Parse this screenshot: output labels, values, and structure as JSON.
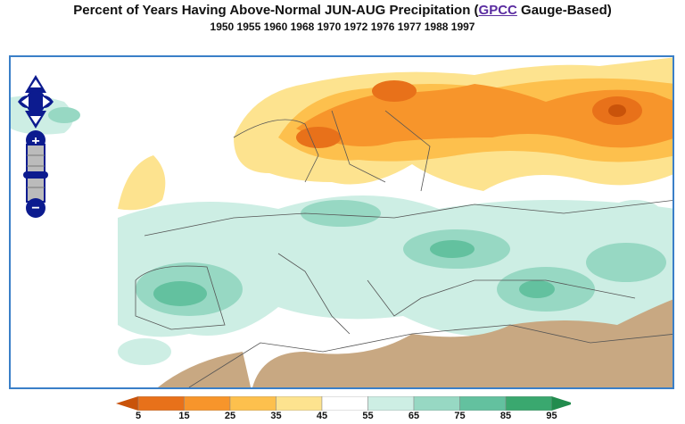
{
  "header": {
    "title_prefix": "Percent of Years Having Above-Normal JUN-AUG Precipitation (",
    "title_link": "GPCC",
    "title_suffix": " Gauge-Based)",
    "years": "1950 1955 1960 1968 1970 1972 1976 1977 1988 1997"
  },
  "map_controls": {
    "pan": "pan-arrows-icon",
    "zoom_in": "+",
    "zoom_out": "−"
  },
  "legend": {
    "ticks": [
      "5",
      "15",
      "25",
      "35",
      "45",
      "55",
      "65",
      "75",
      "85",
      "95"
    ],
    "colors": [
      "#c9530a",
      "#e8711a",
      "#f7952b",
      "#fdc04d",
      "#fde38f",
      "#ffffff",
      "#cdeee4",
      "#97d8c3",
      "#63c19f",
      "#3aa86f",
      "#228c4e"
    ],
    "land_mask_color": "#c8a882"
  }
}
